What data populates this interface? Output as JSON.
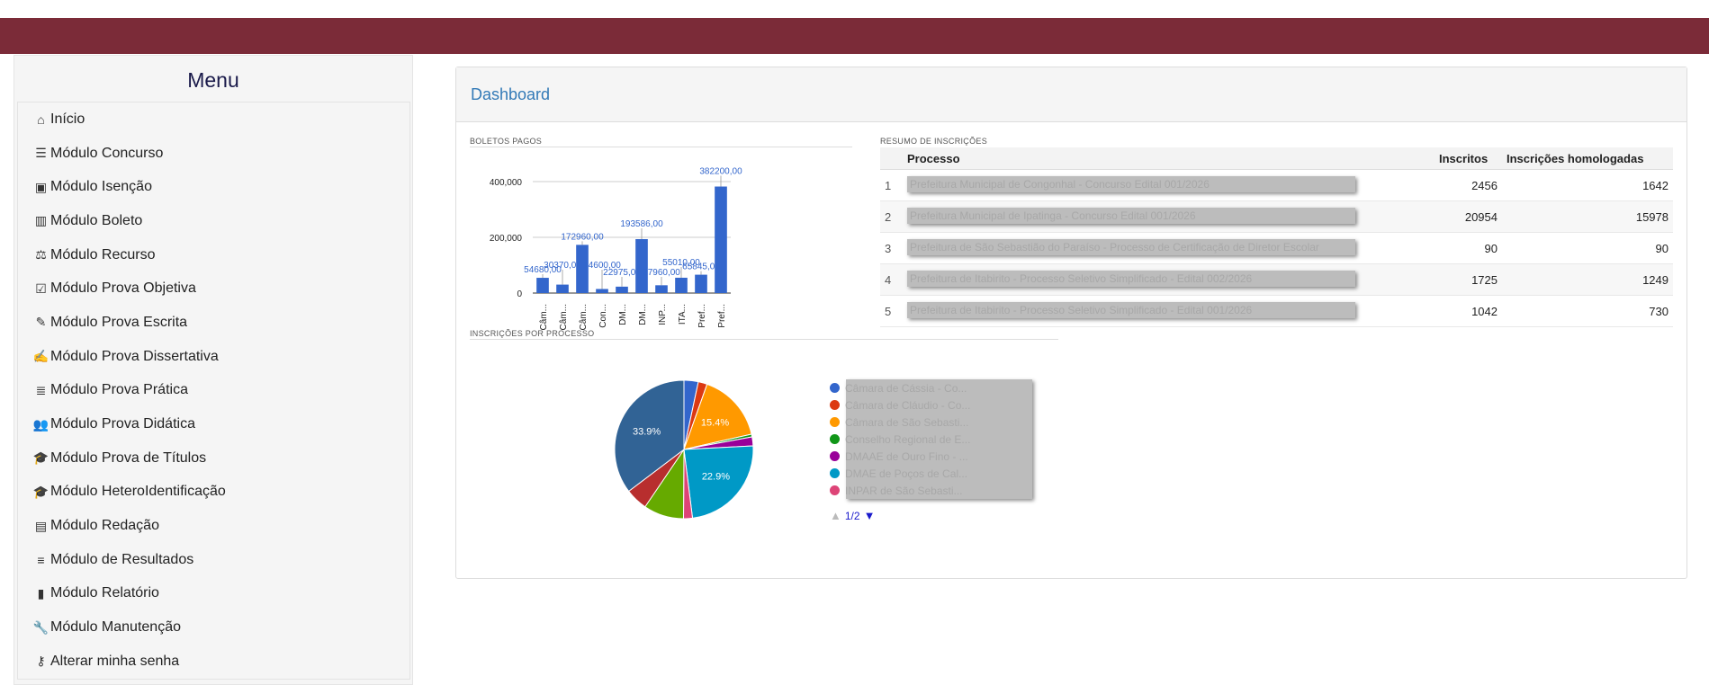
{
  "menu": {
    "title": "Menu",
    "items": [
      {
        "label": "Início",
        "icon": "home-icon"
      },
      {
        "label": "Módulo Concurso",
        "icon": "list-icon"
      },
      {
        "label": "Módulo Isenção",
        "icon": "money-icon"
      },
      {
        "label": "Módulo Boleto",
        "icon": "barcode-icon"
      },
      {
        "label": "Módulo Recurso",
        "icon": "balance-scale-icon"
      },
      {
        "label": "Módulo Prova Objetiva",
        "icon": "check-square-icon"
      },
      {
        "label": "Módulo Prova Escrita",
        "icon": "pencil-icon"
      },
      {
        "label": "Módulo Prova Dissertativa",
        "icon": "edit-icon"
      },
      {
        "label": "Módulo Prova Prática",
        "icon": "server-icon"
      },
      {
        "label": "Módulo Prova Didática",
        "icon": "users-icon"
      },
      {
        "label": "Módulo Prova de Títulos",
        "icon": "graduation-cap-icon"
      },
      {
        "label": "Módulo HeteroIdentificação",
        "icon": "graduation-cap-icon"
      },
      {
        "label": "Módulo Redação",
        "icon": "file-text-icon"
      },
      {
        "label": "Módulo de Resultados",
        "icon": "list-ol-icon"
      },
      {
        "label": "Módulo Relatório",
        "icon": "bar-chart-icon"
      },
      {
        "label": "Módulo Manutenção",
        "icon": "wrench-icon"
      },
      {
        "label": "Alterar minha senha",
        "icon": "key-icon"
      }
    ]
  },
  "dashboard": {
    "title": "Dashboard",
    "boletos_label": "BOLETOS PAGOS",
    "resumo_label": "RESUMO DE INSCRIÇÕES",
    "inscricoes_label": "INSCRIÇÕES POR PROCESSO"
  },
  "table": {
    "headers": [
      "Processo",
      "Inscritos",
      "Inscrições homologadas"
    ],
    "rows": [
      {
        "idx": "1",
        "processo": "Prefeitura Municipal de Congonhal - Concurso Edital 001/2026",
        "inscritos": "2456",
        "homologadas": "1642"
      },
      {
        "idx": "2",
        "processo": "Prefeitura Municipal de Ipatinga - Concurso Edital 001/2026",
        "inscritos": "20954",
        "homologadas": "15978"
      },
      {
        "idx": "3",
        "processo": "Prefeitura de São Sebastião do Paraíso - Processo de Certificação de Diretor Escolar",
        "inscritos": "90",
        "homologadas": "90"
      },
      {
        "idx": "4",
        "processo": "Prefeitura de Itabirito - Processo Seletivo Simplificado - Edital 002/2026",
        "inscritos": "1725",
        "homologadas": "1249"
      },
      {
        "idx": "5",
        "processo": "Prefeitura de Itabirito - Processo Seletivo Simplificado - Edital 001/2026",
        "inscritos": "1042",
        "homologadas": "730"
      }
    ]
  },
  "legend": {
    "items": [
      {
        "label": "Câmara de Cássia - Co...",
        "color": "#3366cc"
      },
      {
        "label": "Câmara de Cláudio - Co...",
        "color": "#dc3912"
      },
      {
        "label": "Câmara de São Sebasti...",
        "color": "#ff9900"
      },
      {
        "label": "Conselho Regional de E...",
        "color": "#109618"
      },
      {
        "label": "DMAAE de Ouro Fino - ...",
        "color": "#990099"
      },
      {
        "label": "DMAE de Poços de Cal...",
        "color": "#0099c6"
      },
      {
        "label": "INPAR de São Sebasti...",
        "color": "#dd4477"
      }
    ],
    "pager": "1/2"
  },
  "chart_data": [
    {
      "type": "bar",
      "title": "BOLETOS PAGOS",
      "categories": [
        "Câm...",
        "Câm...",
        "Câm...",
        "Con...",
        "DM...",
        "DM...",
        "INP...",
        "ITA...",
        "Pref...",
        "Pref..."
      ],
      "values": [
        54680,
        30370,
        172960,
        14600,
        22975,
        193586,
        27960,
        55010,
        65845,
        382200
      ],
      "data_labels": [
        "54680,00",
        "30370,00",
        "172960,00",
        "14600,00",
        "22975,00",
        "193586,00",
        "27960,00",
        "55010,00",
        "65845,00",
        "382200,00"
      ],
      "yticks": [
        "400,000",
        "200,000",
        "0"
      ],
      "ylim": [
        0,
        400000
      ],
      "color": "#3366cc",
      "grid": true
    },
    {
      "type": "pie",
      "title": "INSCRIÇÕES POR PROCESSO",
      "slices": [
        {
          "value": 3.2,
          "color": "#3366cc",
          "label": ""
        },
        {
          "value": 2.0,
          "color": "#dc3912",
          "label": ""
        },
        {
          "value": 15.4,
          "color": "#ff9900",
          "label": "15.4%"
        },
        {
          "value": 0.6,
          "color": "#109618",
          "label": ""
        },
        {
          "value": 2.0,
          "color": "#990099",
          "label": ""
        },
        {
          "value": 22.9,
          "color": "#0099c6",
          "label": "22.9%"
        },
        {
          "value": 2.0,
          "color": "#dd4477",
          "label": ""
        },
        {
          "value": 9.0,
          "color": "#66aa00",
          "label": ""
        },
        {
          "value": 5.0,
          "color": "#b82e2e",
          "label": ""
        },
        {
          "value": 33.9,
          "color": "#316395",
          "label": "33.9%"
        }
      ],
      "legend_position": "right"
    }
  ]
}
